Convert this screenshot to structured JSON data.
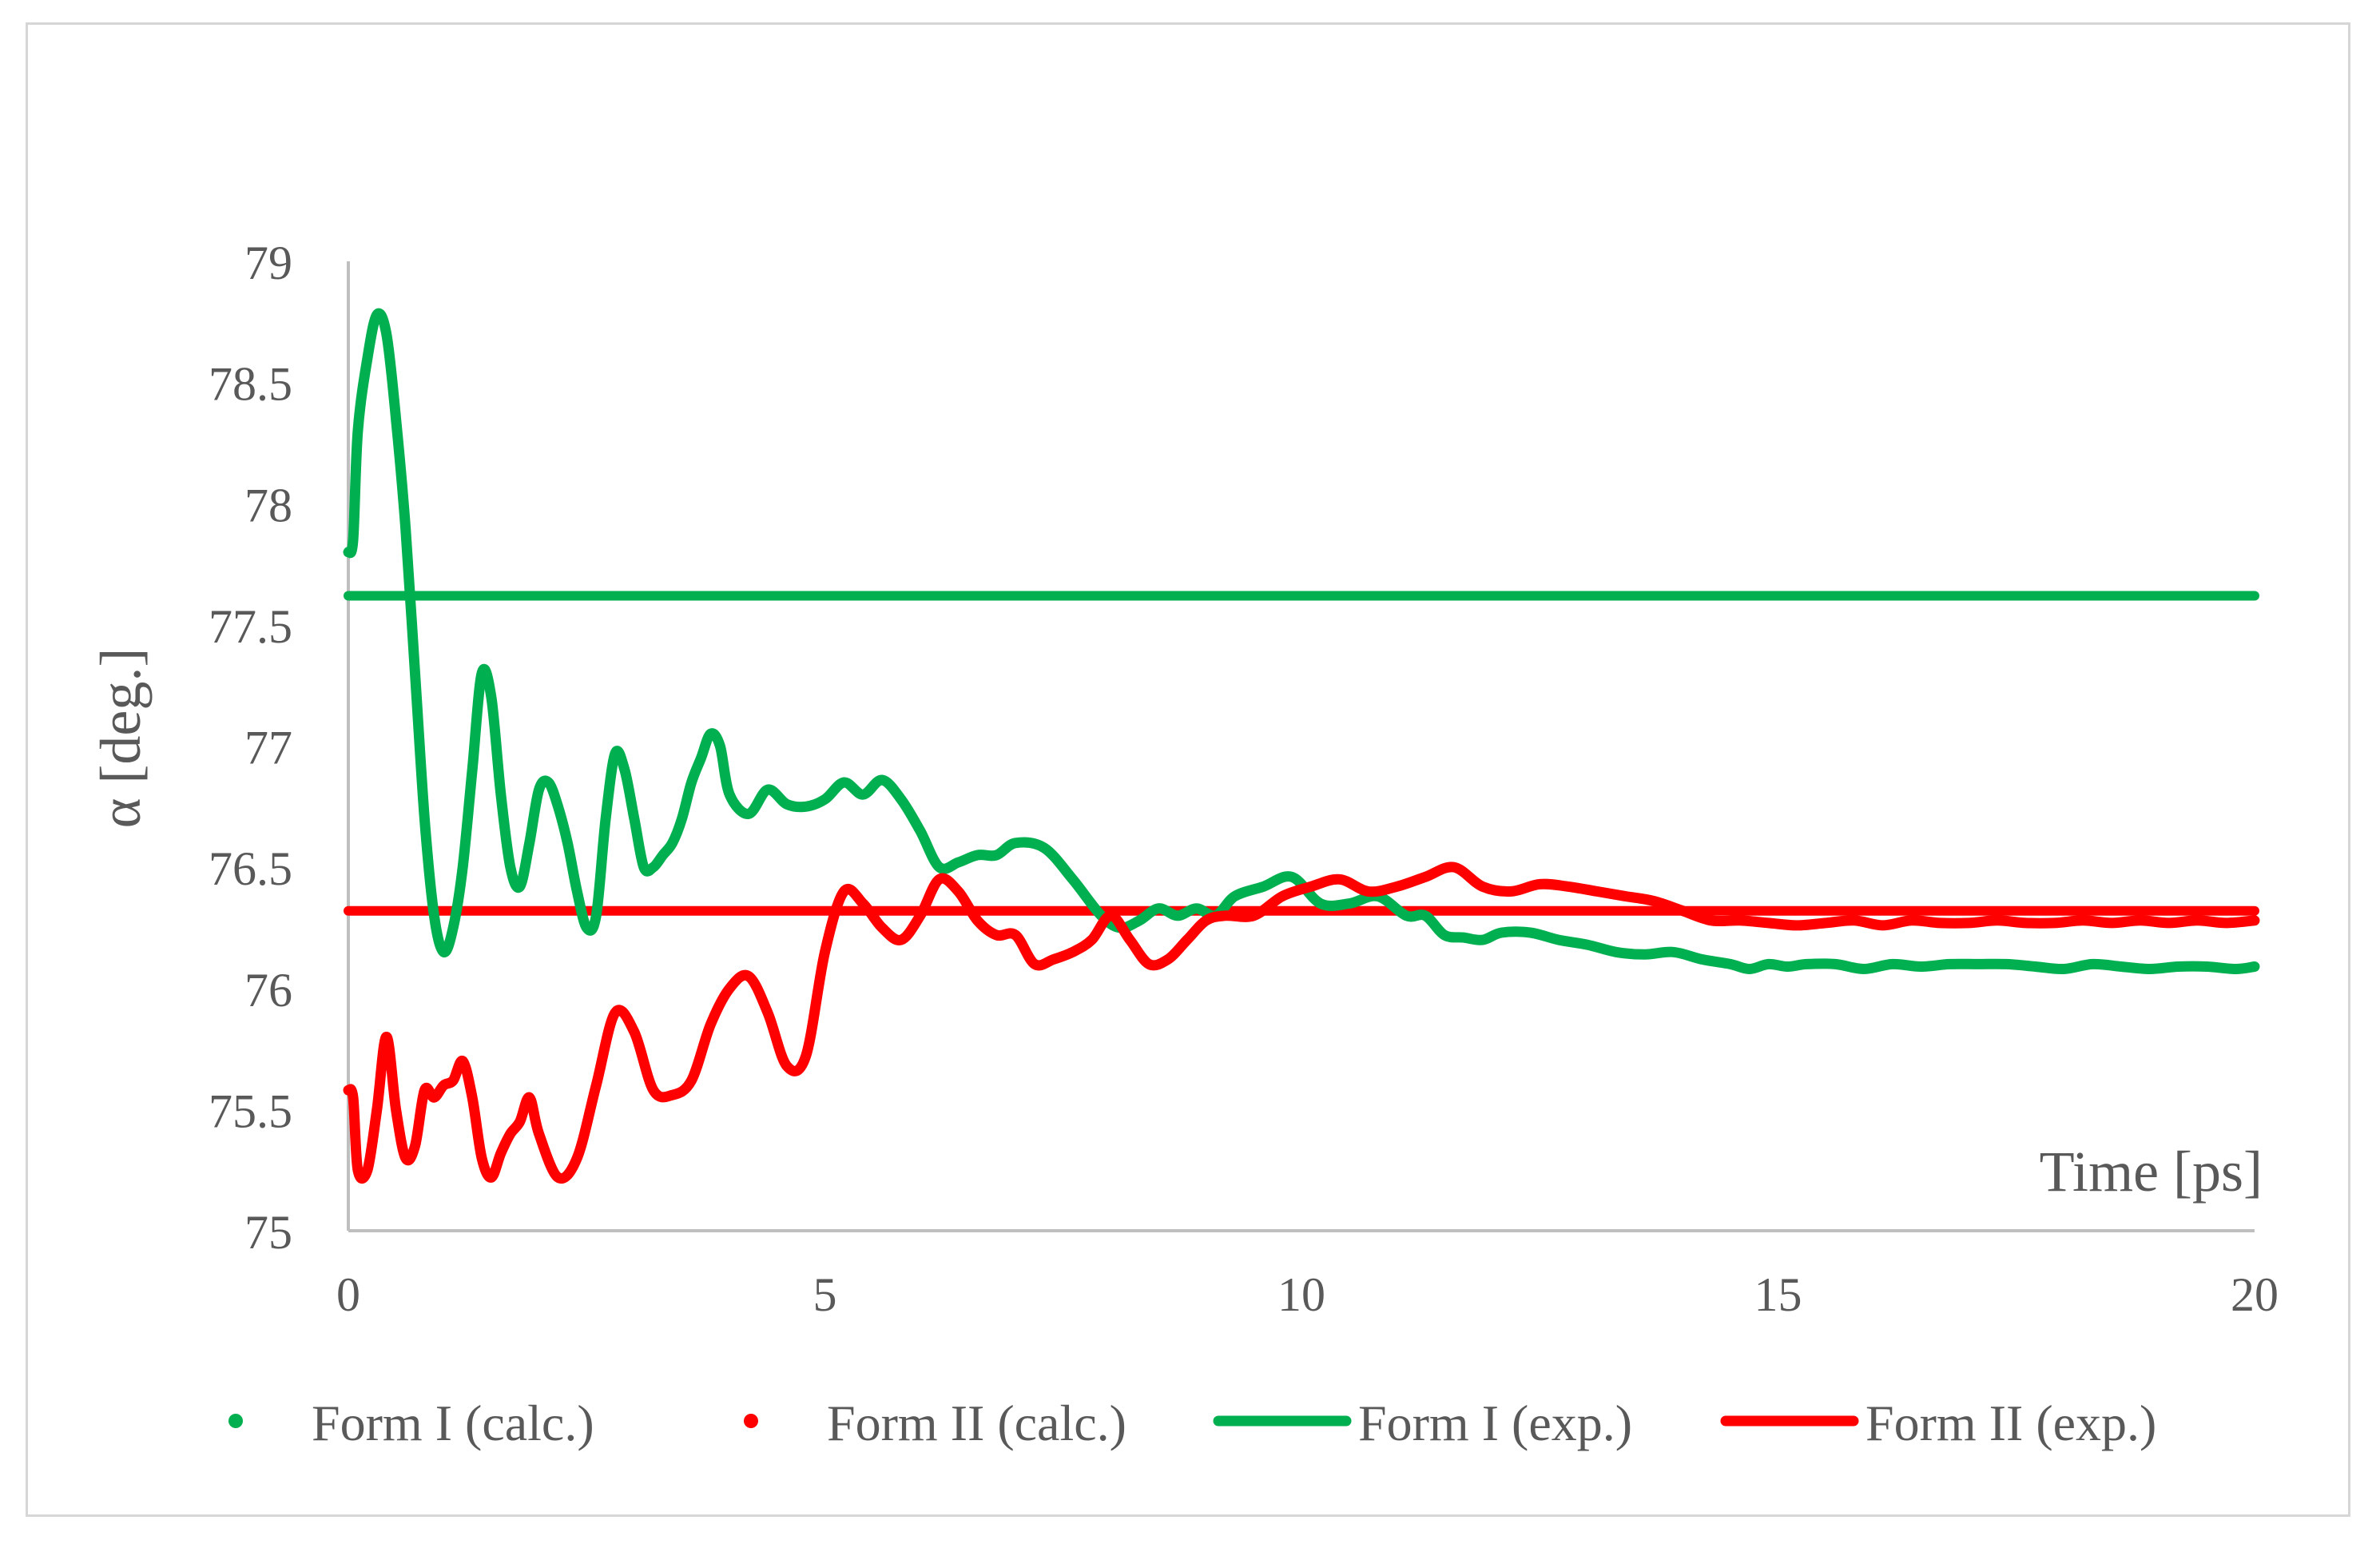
{
  "chart_data": {
    "type": "line",
    "xlabel": "Time [ps]",
    "ylabel": "α [deg.]",
    "xlim": [
      0,
      20
    ],
    "ylim": [
      75,
      79
    ],
    "xticks": [
      "0",
      "5",
      "10",
      "15",
      "20"
    ],
    "yticks": [
      "75",
      "75.5",
      "76",
      "76.5",
      "77",
      "77.5",
      "78",
      "78.5",
      "79"
    ],
    "grid": false,
    "legend_position": "bottom",
    "series": [
      {
        "name": "Form I (calc.)",
        "color": "#00b050",
        "style": "line-thick",
        "legend_marker": "dot",
        "x": [
          0.0,
          0.05,
          0.1,
          0.2,
          0.3,
          0.4,
          0.5,
          0.6,
          0.7,
          0.8,
          0.9,
          1.0,
          1.1,
          1.2,
          1.3,
          1.4,
          1.5,
          1.6,
          1.7,
          1.8,
          1.9,
          2.0,
          2.1,
          2.2,
          2.3,
          2.4,
          2.5,
          2.6,
          2.7,
          2.8,
          2.9,
          3.0,
          3.1,
          3.2,
          3.3,
          3.4,
          3.5,
          3.6,
          3.7,
          3.8,
          3.9,
          4.0,
          4.2,
          4.4,
          4.6,
          4.8,
          5.0,
          5.2,
          5.4,
          5.6,
          5.8,
          6.0,
          6.2,
          6.4,
          6.6,
          6.8,
          7.0,
          7.3,
          7.6,
          7.9,
          8.1,
          8.3,
          8.5,
          8.7,
          8.9,
          9.1,
          9.3,
          9.6,
          9.9,
          10.2,
          10.5,
          10.8,
          11.1,
          11.3,
          11.5,
          11.7,
          11.9,
          12.1,
          12.4,
          12.7,
          13.0,
          13.3,
          13.6,
          13.9,
          14.2,
          14.5,
          14.7,
          14.9,
          15.1,
          15.3,
          15.6,
          15.9,
          16.2,
          16.5,
          16.8,
          17.1,
          17.4,
          17.7,
          18.0,
          18.3,
          18.6,
          18.9,
          19.2,
          19.5,
          19.8,
          20.0
        ],
        "y": [
          77.8,
          77.85,
          78.3,
          78.6,
          78.78,
          78.7,
          78.35,
          77.9,
          77.3,
          76.7,
          76.3,
          76.15,
          76.25,
          76.5,
          76.9,
          77.3,
          77.2,
          76.8,
          76.5,
          76.42,
          76.6,
          76.82,
          76.85,
          76.75,
          76.6,
          76.4,
          76.25,
          76.3,
          76.7,
          76.97,
          76.9,
          76.7,
          76.5,
          76.5,
          76.55,
          76.6,
          76.7,
          76.85,
          76.95,
          77.05,
          77.0,
          76.8,
          76.72,
          76.82,
          76.76,
          76.75,
          76.78,
          76.85,
          76.8,
          76.86,
          76.78,
          76.65,
          76.5,
          76.52,
          76.55,
          76.55,
          76.6,
          76.58,
          76.45,
          76.3,
          76.25,
          76.28,
          76.33,
          76.3,
          76.33,
          76.3,
          76.38,
          76.42,
          76.46,
          76.35,
          76.35,
          76.38,
          76.3,
          76.3,
          76.22,
          76.21,
          76.2,
          76.23,
          76.23,
          76.2,
          76.18,
          76.15,
          76.14,
          76.15,
          76.12,
          76.1,
          76.08,
          76.1,
          76.09,
          76.1,
          76.1,
          76.08,
          76.1,
          76.09,
          76.1,
          76.1,
          76.1,
          76.09,
          76.08,
          76.1,
          76.09,
          76.08,
          76.09,
          76.09,
          76.08,
          76.09
        ]
      },
      {
        "name": "Form II (calc.)",
        "color": "#ff0000",
        "style": "line-thick",
        "legend_marker": "dot",
        "x": [
          0.0,
          0.05,
          0.1,
          0.2,
          0.3,
          0.4,
          0.5,
          0.6,
          0.7,
          0.8,
          0.9,
          1.0,
          1.1,
          1.2,
          1.3,
          1.4,
          1.5,
          1.6,
          1.7,
          1.8,
          1.9,
          2.0,
          2.2,
          2.4,
          2.6,
          2.8,
          3.0,
          3.2,
          3.4,
          3.6,
          3.8,
          4.0,
          4.2,
          4.4,
          4.6,
          4.8,
          5.0,
          5.2,
          5.4,
          5.6,
          5.8,
          6.0,
          6.2,
          6.4,
          6.6,
          6.8,
          7.0,
          7.2,
          7.4,
          7.6,
          7.8,
          8.0,
          8.2,
          8.4,
          8.6,
          8.8,
          9.0,
          9.2,
          9.5,
          9.8,
          10.1,
          10.4,
          10.7,
          11.0,
          11.3,
          11.6,
          11.9,
          12.2,
          12.5,
          12.8,
          13.1,
          13.4,
          13.7,
          14.0,
          14.3,
          14.6,
          14.9,
          15.2,
          15.5,
          15.8,
          16.1,
          16.4,
          16.7,
          17.0,
          17.3,
          17.6,
          17.9,
          18.2,
          18.5,
          18.8,
          19.1,
          19.4,
          19.7,
          20.0
        ],
        "y": [
          75.58,
          75.55,
          75.25,
          75.25,
          75.5,
          75.8,
          75.5,
          75.3,
          75.35,
          75.58,
          75.55,
          75.6,
          75.62,
          75.7,
          75.55,
          75.3,
          75.22,
          75.32,
          75.4,
          75.45,
          75.55,
          75.4,
          75.22,
          75.3,
          75.6,
          75.9,
          75.82,
          75.58,
          75.56,
          75.62,
          75.85,
          76.0,
          76.05,
          75.9,
          75.68,
          75.72,
          76.15,
          76.4,
          76.35,
          76.25,
          76.2,
          76.3,
          76.45,
          76.4,
          76.28,
          76.22,
          76.22,
          76.1,
          76.12,
          76.15,
          76.2,
          76.3,
          76.2,
          76.1,
          76.12,
          76.2,
          76.28,
          76.3,
          76.3,
          76.38,
          76.42,
          76.45,
          76.4,
          76.42,
          76.46,
          76.5,
          76.42,
          76.4,
          76.43,
          76.42,
          76.4,
          76.38,
          76.36,
          76.32,
          76.28,
          76.28,
          76.27,
          76.26,
          76.27,
          76.28,
          76.26,
          76.28,
          76.27,
          76.27,
          76.28,
          76.27,
          76.27,
          76.28,
          76.27,
          76.28,
          76.27,
          76.28,
          76.27,
          76.28
        ]
      },
      {
        "name": "Form I (exp.)",
        "color": "#00b050",
        "style": "constant",
        "legend_marker": "line",
        "x": [
          0,
          20
        ],
        "y": [
          77.62,
          77.62
        ]
      },
      {
        "name": "Form II (exp.)",
        "color": "#ff0000",
        "style": "constant",
        "legend_marker": "line",
        "x": [
          0,
          20
        ],
        "y": [
          76.32,
          76.32
        ]
      }
    ]
  }
}
